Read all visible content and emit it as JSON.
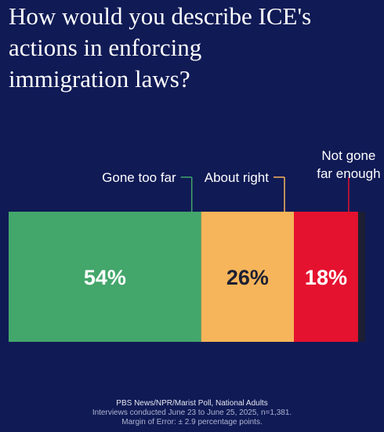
{
  "title": "How would you describe ICE's\nactions in enforcing\nimmigration laws?",
  "chart_data": {
    "type": "bar",
    "orientation": "horizontal-stacked",
    "categories": [
      "Gone too far",
      "About right",
      "Not gone far enough"
    ],
    "category_labels": [
      [
        "Gone too far"
      ],
      [
        "About right"
      ],
      [
        "Not gone",
        "far enough"
      ]
    ],
    "values": [
      54,
      26,
      18
    ],
    "value_labels": [
      "54%",
      "26%",
      "18%"
    ],
    "unit": "%",
    "total": 100,
    "colors": [
      "#43a66b",
      "#f6b55a",
      "#e5122f"
    ],
    "remainder_color": "#1c1f33",
    "value_label_colors": [
      "#ffffff",
      "#1c1f33",
      "#ffffff"
    ],
    "label_line_colors": [
      "#43a66b",
      "#f6b55a",
      "#e5122f"
    ],
    "title": "",
    "xlabel": "",
    "ylabel": "",
    "legend": "none",
    "grid": false
  },
  "footer": {
    "source": "PBS News/NPR/Marist Poll, National Adults",
    "dates": "Interviews conducted June 23 to June 25, 2025, n=1,381.",
    "margin": "Margin of Error: ± 2.9 percentage points."
  }
}
